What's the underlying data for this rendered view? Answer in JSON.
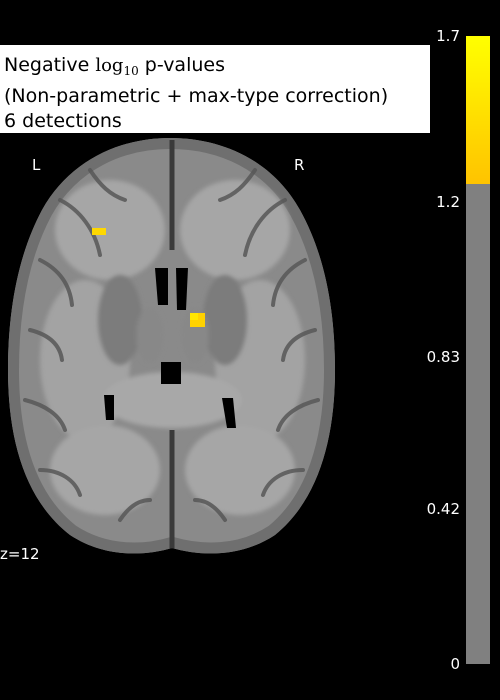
{
  "title": {
    "prefix": "Negative",
    "log_base": "log",
    "log_sub": "10",
    "suffix": "p-values",
    "line2": "(Non-parametric + max-type correction)",
    "line3": "6 detections"
  },
  "orientation": {
    "left": "L",
    "right": "R"
  },
  "slice": {
    "label": "z=12"
  },
  "colorbar": {
    "min": 0,
    "max": 1.7,
    "threshold": 1.3,
    "ticks": [
      "1.7",
      "1.2",
      "0.83",
      "0.42",
      "0"
    ],
    "tick_values": [
      1.7,
      1.25,
      0.83,
      0.42,
      0
    ],
    "colors": {
      "below_threshold": "#808080",
      "low": "#ffc300",
      "high": "#ffff00"
    }
  },
  "colors": {
    "background": "#000000",
    "brain_gray": "#8a8a8a",
    "ventricle": "#000000",
    "activation": "#ffd800"
  }
}
